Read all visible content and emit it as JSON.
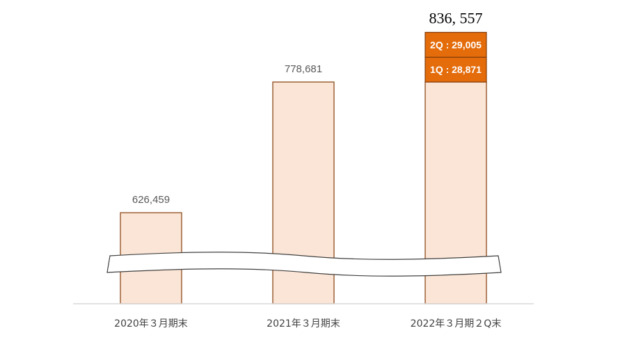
{
  "chart_data": {
    "type": "bar",
    "categories": [
      "2020年３月期末",
      "2021年３月期末",
      "2022年３月期２Q末"
    ],
    "values": [
      626459,
      778681,
      836557
    ],
    "value_labels": [
      "626,459",
      "778,681",
      "836, 557"
    ],
    "stacked_top": {
      "category_index": 2,
      "segments": [
        {
          "label": "1Q : 28,871",
          "value": 28871
        },
        {
          "label": "2Q : 29,005",
          "value": 29005
        }
      ]
    },
    "axis_break": true,
    "grid": false,
    "colors": {
      "bar_fill": "#fbe5d6",
      "bar_stroke": "#843c0c",
      "segment_fill": "#e46c0a",
      "axis": "#d9d9d9"
    }
  }
}
